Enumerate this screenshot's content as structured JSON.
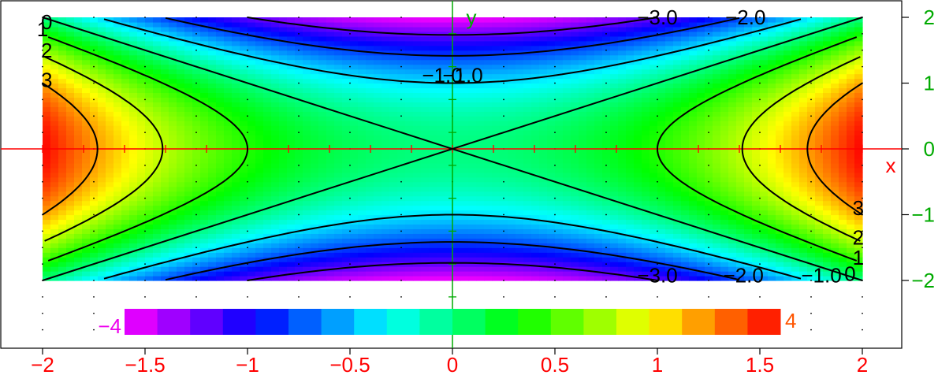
{
  "chart_data": {
    "type": "heatmap",
    "function": "x^2 - y^2",
    "title": "",
    "xlabel": "x",
    "ylabel": "y",
    "xlim": [
      -2,
      2
    ],
    "ylim": [
      -2,
      2
    ],
    "bottom_ticks": [
      "−2",
      "−1.5",
      "−1",
      "−0.5",
      "0",
      "0.5",
      "1",
      "1.5",
      "2"
    ],
    "right_ticks": [
      "2",
      "1",
      "0",
      "−1",
      "−2"
    ],
    "colorbar": {
      "min": -4,
      "max": 4,
      "levels": 20,
      "min_label": "−4",
      "max_label": "4"
    },
    "contour_levels": [
      -3,
      -2,
      -1,
      0,
      1,
      2,
      3
    ],
    "contour_labels": [
      {
        "text": "0",
        "x": -1.98,
        "y": 1.93
      },
      {
        "text": "1",
        "x": -2.0,
        "y": 1.82
      },
      {
        "text": "2",
        "x": -1.98,
        "y": 1.5
      },
      {
        "text": "3",
        "x": -1.98,
        "y": 1.05
      },
      {
        "text": "−3.0",
        "x": 1.0,
        "y": 2.0
      },
      {
        "text": "−2.0",
        "x": 1.43,
        "y": 2.0
      },
      {
        "text": "−1.0",
        "x": -0.05,
        "y": 1.12
      },
      {
        "text": "−1.0",
        "x": 0.05,
        "y": 1.12
      },
      {
        "text": "3",
        "x": 1.98,
        "y": -0.9
      },
      {
        "text": "2",
        "x": 1.98,
        "y": -1.35
      },
      {
        "text": "1",
        "x": 1.98,
        "y": -1.65
      },
      {
        "text": "−1.0",
        "x": 1.8,
        "y": -1.92
      },
      {
        "text": "0",
        "x": 1.94,
        "y": -1.9
      },
      {
        "text": "−3.0",
        "x": 1.0,
        "y": -1.92
      },
      {
        "text": "−2.0",
        "x": 1.42,
        "y": -1.92
      }
    ],
    "grid": "dotted",
    "colors": {
      "x_axis": "#ff0000",
      "y_axis": "#00aa00",
      "contour": "#000000",
      "colorbar_min_label": "#ee00ee",
      "colorbar_max_label": "#ff5500"
    }
  }
}
